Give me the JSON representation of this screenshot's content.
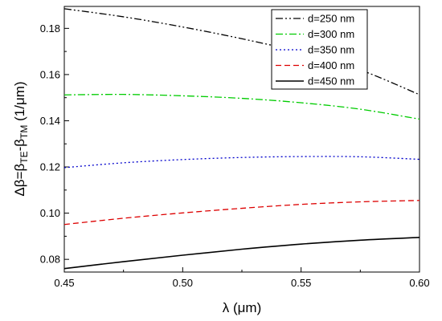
{
  "chart_data": {
    "type": "line",
    "title": "",
    "xlabel": "λ (μm)",
    "ylabel": "Δβ=β_TE-β_TM (1/μm)",
    "ylabel_parts": {
      "lhs": "Δβ=β",
      "sub1": "TE",
      "mid": "-β",
      "sub2": "TM",
      "unit": " (1/μm)"
    },
    "xlim": [
      0.45,
      0.6
    ],
    "ylim": [
      0.0745,
      0.1895
    ],
    "xticks": [
      0.45,
      0.5,
      0.55,
      0.6
    ],
    "xtick_labels": [
      "0.45",
      "0.50",
      "0.55",
      "0.60"
    ],
    "yticks": [
      0.08,
      0.1,
      0.12,
      0.14,
      0.16,
      0.18
    ],
    "ytick_labels": [
      "0.08",
      "0.10",
      "0.12",
      "0.14",
      "0.16",
      "0.18"
    ],
    "grid": false,
    "legend_position": "top-right",
    "x": [
      0.45,
      0.475,
      0.5,
      0.525,
      0.55,
      0.575,
      0.6
    ],
    "series": [
      {
        "name": "d=250 nm",
        "color": "#000000",
        "dash": "dash-dot-dot",
        "values": [
          0.1885,
          0.185,
          0.1806,
          0.1755,
          0.1696,
          0.162,
          0.1513
        ]
      },
      {
        "name": "d=300 nm",
        "color": "#00cc00",
        "dash": "dash-dot",
        "values": [
          0.1512,
          0.1514,
          0.1508,
          0.1497,
          0.1478,
          0.145,
          0.1407
        ]
      },
      {
        "name": "d=350 nm",
        "color": "#0000cc",
        "dash": "dot",
        "values": [
          0.1197,
          0.1218,
          0.1232,
          0.1241,
          0.1245,
          0.1244,
          0.1233
        ]
      },
      {
        "name": "d=400 nm",
        "color": "#dd0000",
        "dash": "dash",
        "values": [
          0.0951,
          0.0978,
          0.1001,
          0.1021,
          0.1038,
          0.1049,
          0.1055
        ]
      },
      {
        "name": "d=450 nm",
        "color": "#000000",
        "dash": "solid",
        "values": [
          0.076,
          0.079,
          0.0818,
          0.0844,
          0.0866,
          0.0883,
          0.0895
        ]
      }
    ]
  }
}
